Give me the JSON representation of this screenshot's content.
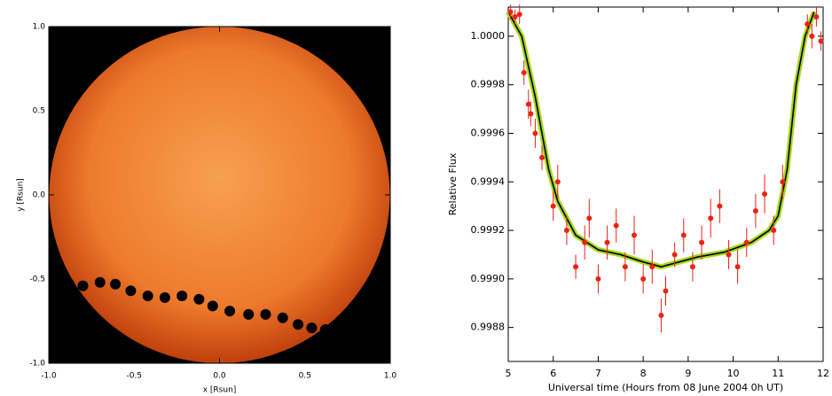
{
  "chart_data": [
    {
      "type": "scatter",
      "xlabel": "x [Rsun]",
      "ylabel": "y [Rsun]",
      "xlim": [
        -1,
        1
      ],
      "ylim": [
        -1,
        1
      ],
      "xticks": [
        {
          "value": -1,
          "label": "-1.0"
        },
        -0.5,
        {
          "value": 0,
          "label": "0.0"
        },
        0.5,
        {
          "value": 1,
          "label": "1.0"
        }
      ],
      "yticks": [
        {
          "value": -1,
          "label": "-1.0"
        },
        -0.5,
        {
          "value": 0,
          "label": "0.0"
        },
        0.5,
        {
          "value": 1,
          "label": "1.0"
        }
      ],
      "series": [
        {
          "color": "#000000",
          "x": [
            -0.97,
            -0.88,
            -0.8,
            -0.7,
            -0.61,
            -0.52,
            -0.42,
            -0.32,
            -0.22,
            -0.12,
            -0.04,
            0.06,
            0.17,
            0.27,
            0.37,
            0.46,
            0.54,
            0.62
          ],
          "y": [
            -0.51,
            -0.53,
            -0.54,
            -0.52,
            -0.53,
            -0.57,
            -0.6,
            -0.61,
            -0.6,
            -0.62,
            -0.66,
            -0.69,
            -0.71,
            -0.71,
            -0.73,
            -0.77,
            -0.79,
            -0.8
          ]
        }
      ]
    },
    {
      "type": "line",
      "xlabel": "Universal time (Hours from 08 June 2004 0h UT)",
      "ylabel": "Relative Flux",
      "xlim": [
        5,
        12
      ],
      "ylim": [
        0.99866,
        1.00012
      ],
      "xticks": [
        5,
        6,
        7,
        8,
        9,
        10,
        11,
        12
      ],
      "yticks": [
        0.9988,
        {
          "value": 0.999,
          "label": "0.9990"
        },
        0.9992,
        0.9994,
        0.9996,
        0.9998,
        {
          "value": 1,
          "label": "1.0000"
        }
      ],
      "series": [
        {
          "type": "line",
          "color": "#000000",
          "x": [
            5.0,
            5.3,
            5.6,
            5.9,
            6.1,
            6.5,
            7.0,
            7.5,
            8.0,
            8.4,
            8.8,
            9.2,
            9.8,
            10.4,
            10.8,
            11.0,
            11.2,
            11.4,
            11.6,
            11.8
          ],
          "values": [
            1.0001,
            1.0,
            0.99975,
            0.99945,
            0.99932,
            0.99918,
            0.99912,
            0.9991,
            0.99907,
            0.99905,
            0.99907,
            0.99909,
            0.99911,
            0.99915,
            0.9992,
            0.99926,
            0.99945,
            0.9998,
            1.0,
            1.0001
          ]
        },
        {
          "type": "scatter",
          "color": "#ee2211",
          "x": [
            5.05,
            5.15,
            5.25,
            5.35,
            5.45,
            5.5,
            5.6,
            5.75,
            6.0,
            6.1,
            6.3,
            6.5,
            6.7,
            6.8,
            7.0,
            7.2,
            7.4,
            7.6,
            7.8,
            8.0,
            8.2,
            8.4,
            8.5,
            8.7,
            8.9,
            9.1,
            9.3,
            9.5,
            9.7,
            9.9,
            10.1,
            10.3,
            10.5,
            10.7,
            10.9,
            11.1,
            11.65,
            11.75,
            11.85,
            11.95
          ],
          "values": [
            1.0001,
            1.00008,
            1.00009,
            0.99985,
            0.99972,
            0.99968,
            0.9996,
            0.9995,
            0.9993,
            0.9994,
            0.9992,
            0.99905,
            0.99915,
            0.99925,
            0.999,
            0.99915,
            0.99922,
            0.99905,
            0.99918,
            0.999,
            0.99905,
            0.99885,
            0.99895,
            0.9991,
            0.99918,
            0.99905,
            0.99915,
            0.99925,
            0.9993,
            0.9991,
            0.99905,
            0.99915,
            0.99928,
            0.99935,
            0.9992,
            0.9994,
            1.00005,
            1.0,
            1.00008,
            0.99998
          ],
          "errors": [
            3e-05,
            3e-05,
            4e-05,
            5e-05,
            6e-05,
            5e-05,
            6e-05,
            5e-05,
            6e-05,
            7e-05,
            6e-05,
            5e-05,
            7e-05,
            8e-05,
            6e-05,
            7e-05,
            7e-05,
            6e-05,
            8e-05,
            6e-05,
            7e-05,
            7e-05,
            6e-05,
            5e-05,
            7e-05,
            6e-05,
            7e-05,
            8e-05,
            7e-05,
            6e-05,
            7e-05,
            6e-05,
            7e-05,
            8e-05,
            6e-05,
            7e-05,
            4e-05,
            5e-05,
            4e-05,
            4e-05
          ]
        }
      ]
    }
  ]
}
